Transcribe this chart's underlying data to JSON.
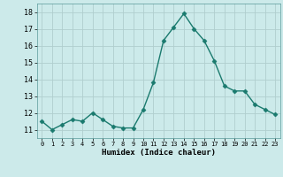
{
  "x": [
    0,
    1,
    2,
    3,
    4,
    5,
    6,
    7,
    8,
    9,
    10,
    11,
    12,
    13,
    14,
    15,
    16,
    17,
    18,
    19,
    20,
    21,
    22,
    23
  ],
  "y": [
    11.5,
    11.0,
    11.3,
    11.6,
    11.5,
    12.0,
    11.6,
    11.2,
    11.1,
    11.1,
    12.2,
    13.8,
    16.3,
    17.1,
    17.9,
    17.0,
    16.3,
    15.1,
    13.6,
    13.3,
    13.3,
    12.5,
    12.2,
    11.9
  ],
  "xlabel": "Humidex (Indice chaleur)",
  "ylim": [
    10.5,
    18.5
  ],
  "xlim": [
    -0.5,
    23.5
  ],
  "line_color": "#1a7a6e",
  "marker": "D",
  "marker_size": 2.5,
  "bg_color": "#cceaea",
  "grid_color": "#b0cece",
  "tick_labels": [
    "0",
    "1",
    "2",
    "3",
    "4",
    "5",
    "6",
    "7",
    "8",
    "9",
    "10",
    "11",
    "12",
    "13",
    "14",
    "15",
    "16",
    "17",
    "18",
    "19",
    "20",
    "21",
    "22",
    "23"
  ],
  "yticks": [
    11,
    12,
    13,
    14,
    15,
    16,
    17,
    18
  ]
}
